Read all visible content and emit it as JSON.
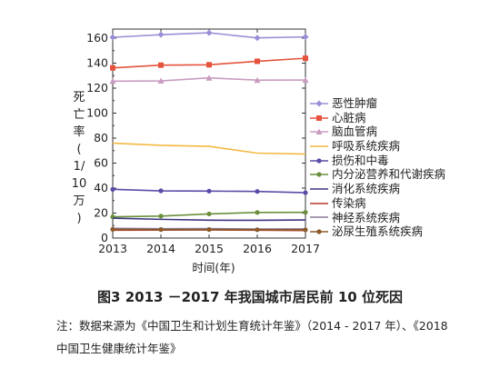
{
  "chart_data": {
    "type": "line",
    "x": [
      2013,
      2014,
      2015,
      2016,
      2017
    ],
    "xlabel": "时间(年)",
    "ylabel": "死亡率(1/10万)",
    "ylabel_lines": [
      "死",
      "亡",
      "率",
      "(",
      "1/",
      "10",
      "万",
      ")"
    ],
    "ylim": [
      0,
      160
    ],
    "yticks": [
      0,
      20,
      40,
      60,
      80,
      100,
      120,
      140,
      160
    ],
    "grid": false,
    "legend_position": "right",
    "series": [
      {
        "name": "恶性肿瘤",
        "color": "#9a8fd6",
        "marker": "diamond",
        "values": [
          160.7,
          162.8,
          164.3,
          160.2,
          161.0
        ]
      },
      {
        "name": "心脏病",
        "color": "#e5533c",
        "marker": "square",
        "values": [
          136.2,
          138.4,
          138.7,
          141.5,
          143.9
        ]
      },
      {
        "name": "脑血管病",
        "color": "#c89cc0",
        "marker": "triangle",
        "values": [
          125.6,
          125.8,
          128.2,
          126.4,
          126.5
        ]
      },
      {
        "name": "呼吸系统疾病",
        "color": "#f4b942",
        "marker": "none",
        "values": [
          76.0,
          74.2,
          73.4,
          68.0,
          67.2
        ]
      },
      {
        "name": "损伤和中毒",
        "color": "#5b4aa8",
        "marker": "dot",
        "values": [
          39.0,
          37.8,
          37.6,
          37.3,
          36.3
        ]
      },
      {
        "name": "内分泌营养和代谢疾病",
        "color": "#6a8f3c",
        "marker": "dot",
        "values": [
          17.0,
          17.6,
          19.3,
          20.5,
          20.6
        ]
      },
      {
        "name": "消化系统疾病",
        "color": "#3d3582",
        "marker": "none",
        "values": [
          15.9,
          15.0,
          14.3,
          14.2,
          14.5
        ]
      },
      {
        "name": "传染病",
        "color": "#b53a2a",
        "marker": "none",
        "values": [
          6.3,
          6.4,
          6.5,
          6.3,
          6.0
        ]
      },
      {
        "name": "神经系统疾病",
        "color": "#8d7a96",
        "marker": "none",
        "values": [
          7.8,
          7.5,
          7.6,
          7.2,
          7.3
        ]
      },
      {
        "name": "泌尿生殖系统疾病",
        "color": "#8a5a2b",
        "marker": "dot",
        "values": [
          7.0,
          6.8,
          6.8,
          6.7,
          6.6
        ]
      }
    ]
  },
  "caption": "图3  2013 －2017 年我国城市居民前 10 位死因",
  "note": "注：数据来源为《中国卫生和计划生育统计年鉴》（2014 - 2017 年）、《2018 中国卫生健康统计年鉴》"
}
